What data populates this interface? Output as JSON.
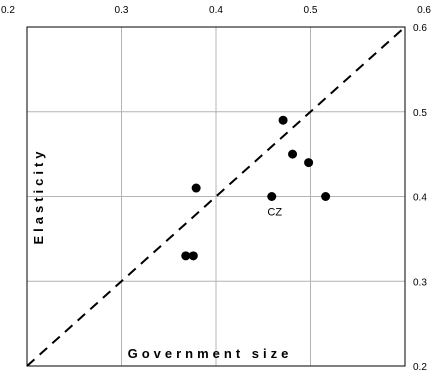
{
  "chart_data": {
    "type": "scatter",
    "xlabel": "Government size",
    "ylabel": "Elasticity",
    "xlim": [
      0.2,
      0.6
    ],
    "ylim": [
      0.2,
      0.6
    ],
    "x_ticks": [
      "0.2",
      "0.3",
      "0.4",
      "0.5",
      "0.6"
    ],
    "y_ticks": [
      "0.2",
      "0.3",
      "0.4",
      "0.5",
      "0.6"
    ],
    "x_axis_position": "top",
    "y_axis_position": "right",
    "grid": true,
    "reference_line": {
      "style": "dashed",
      "from": [
        0.2,
        0.2
      ],
      "to": [
        0.6,
        0.6
      ]
    },
    "points": [
      {
        "x": 0.368,
        "y": 0.33
      },
      {
        "x": 0.376,
        "y": 0.33
      },
      {
        "x": 0.379,
        "y": 0.41
      },
      {
        "x": 0.459,
        "y": 0.4
      },
      {
        "x": 0.471,
        "y": 0.49
      },
      {
        "x": 0.481,
        "y": 0.45
      },
      {
        "x": 0.498,
        "y": 0.44
      },
      {
        "x": 0.516,
        "y": 0.4
      }
    ],
    "annotations": [
      {
        "text": "CZ",
        "x": 0.459,
        "y": 0.4
      }
    ]
  }
}
